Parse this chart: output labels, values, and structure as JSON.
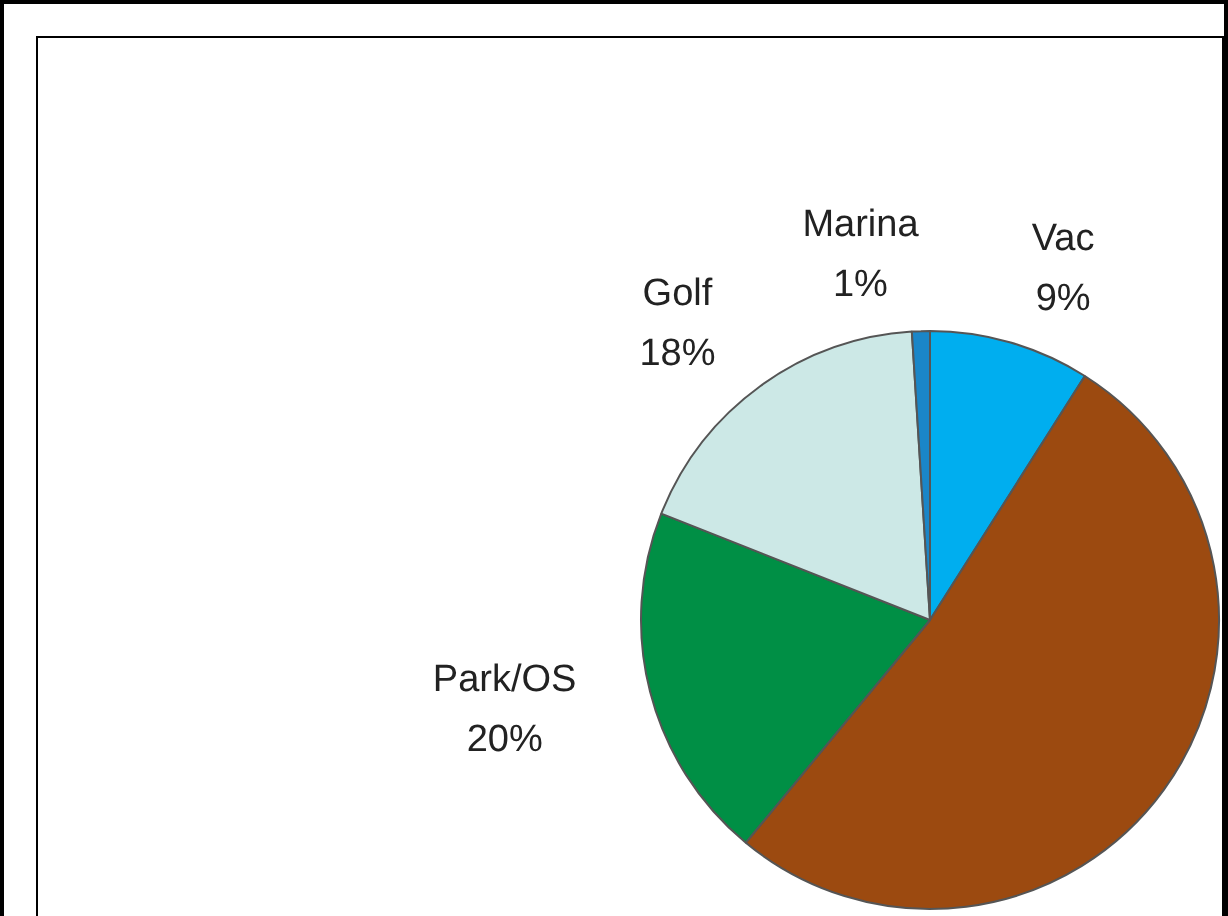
{
  "chart_data": {
    "type": "pie",
    "categories": [
      "Vac",
      null,
      "Park/OS",
      "Golf",
      "Marina"
    ],
    "values": [
      9,
      52,
      20,
      18,
      1
    ],
    "colors": [
      "#00aeef",
      "#9c4a10",
      "#008f45",
      "#cce8e6",
      "#1a86c8"
    ],
    "value_labels": [
      "9%",
      null,
      "20%",
      "18%",
      "1%"
    ],
    "legend": false
  }
}
